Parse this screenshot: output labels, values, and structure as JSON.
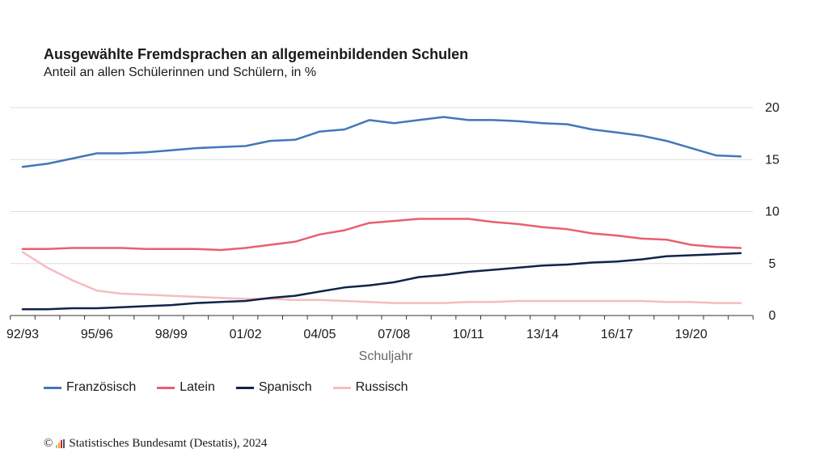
{
  "colors": {
    "franzoesisch": "#4377b8",
    "latein": "#e8606e",
    "spanisch": "#0f2448",
    "russisch": "#f6bcc0",
    "grid": "#dddddd",
    "axis": "#333333",
    "text": "#1a1a1a",
    "axis_title": "#666666"
  },
  "footer": {
    "copyright_symbol": "©",
    "source": "Statistisches Bundesamt (Destatis), 2024"
  },
  "chart_data": {
    "type": "line",
    "title": "Ausgewählte Fremdsprachen an allgemeinbildenden Schulen",
    "subtitle": "Anteil an allen Schülerinnen und Schülern, in %",
    "xlabel": "Schuljahr",
    "ylabel": "",
    "ylim": [
      0,
      20
    ],
    "yticks": [
      0,
      5,
      10,
      15,
      20
    ],
    "grid": true,
    "legend_position": "bottom",
    "x": [
      "92/93",
      "93/94",
      "94/95",
      "95/96",
      "96/97",
      "97/98",
      "98/99",
      "99/00",
      "00/01",
      "01/02",
      "02/03",
      "03/04",
      "04/05",
      "05/06",
      "06/07",
      "07/08",
      "08/09",
      "09/10",
      "10/11",
      "11/12",
      "12/13",
      "13/14",
      "14/15",
      "15/16",
      "16/17",
      "17/18",
      "18/19",
      "19/20",
      "20/21",
      "21/22"
    ],
    "xtick_labels": [
      "92/93",
      "95/96",
      "98/99",
      "01/02",
      "04/05",
      "07/08",
      "10/11",
      "13/14",
      "16/17",
      "19/20"
    ],
    "series": [
      {
        "name": "Französisch",
        "color_key": "franzoesisch",
        "values": [
          14.3,
          14.6,
          15.1,
          15.6,
          15.6,
          15.7,
          15.9,
          16.1,
          16.2,
          16.3,
          16.8,
          16.9,
          17.7,
          17.9,
          18.8,
          18.5,
          18.8,
          19.1,
          18.8,
          18.8,
          18.7,
          18.5,
          18.4,
          17.9,
          17.6,
          17.3,
          16.8,
          16.1,
          15.4,
          15.3
        ]
      },
      {
        "name": "Latein",
        "color_key": "latein",
        "values": [
          6.4,
          6.4,
          6.5,
          6.5,
          6.5,
          6.4,
          6.4,
          6.4,
          6.3,
          6.5,
          6.8,
          7.1,
          7.8,
          8.2,
          8.9,
          9.1,
          9.3,
          9.3,
          9.3,
          9.0,
          8.8,
          8.5,
          8.3,
          7.9,
          7.7,
          7.4,
          7.3,
          6.8,
          6.6,
          6.5
        ]
      },
      {
        "name": "Spanisch",
        "color_key": "spanisch",
        "values": [
          0.6,
          0.6,
          0.7,
          0.7,
          0.8,
          0.9,
          1.0,
          1.2,
          1.3,
          1.4,
          1.7,
          1.9,
          2.3,
          2.7,
          2.9,
          3.2,
          3.7,
          3.9,
          4.2,
          4.4,
          4.6,
          4.8,
          4.9,
          5.1,
          5.2,
          5.4,
          5.7,
          5.8,
          5.9,
          6.0
        ]
      },
      {
        "name": "Russisch",
        "color_key": "russisch",
        "values": [
          6.1,
          4.6,
          3.4,
          2.4,
          2.1,
          2.0,
          1.9,
          1.8,
          1.7,
          1.6,
          1.6,
          1.5,
          1.5,
          1.4,
          1.3,
          1.2,
          1.2,
          1.2,
          1.3,
          1.3,
          1.4,
          1.4,
          1.4,
          1.4,
          1.4,
          1.4,
          1.3,
          1.3,
          1.2,
          1.2
        ]
      }
    ]
  }
}
